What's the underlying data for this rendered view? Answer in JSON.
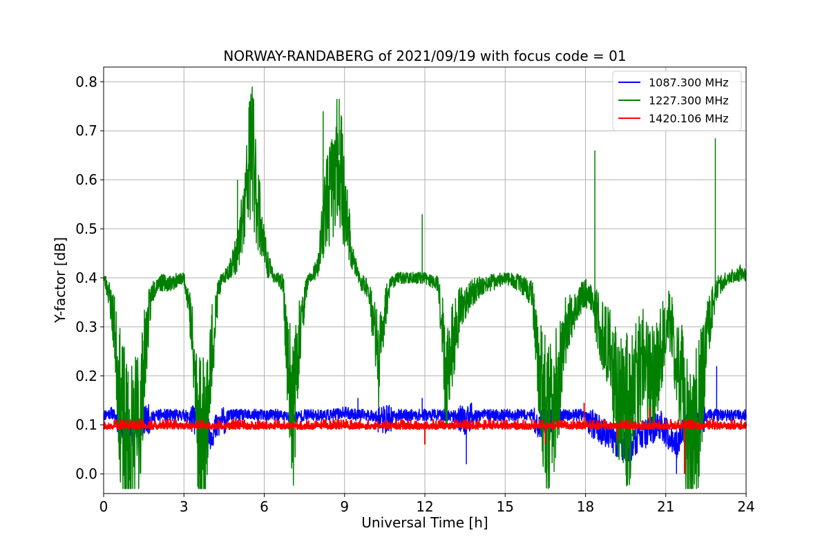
{
  "chart_data": {
    "type": "line",
    "title": "NORWAY-RANDABERG of 2021/09/19 with focus code = 01",
    "xlabel": "Universal Time [h]",
    "ylabel": "Y-factor [dB]",
    "xlim": [
      0,
      24
    ],
    "ylim": [
      -0.04,
      0.83
    ],
    "xticks": [
      0,
      3,
      6,
      9,
      12,
      15,
      18,
      21,
      24
    ],
    "xtick_labels": [
      "0",
      "3",
      "6",
      "9",
      "12",
      "15",
      "18",
      "21",
      "24"
    ],
    "yticks": [
      0.0,
      0.1,
      0.2,
      0.3,
      0.4,
      0.5,
      0.6,
      0.7,
      0.8
    ],
    "ytick_labels": [
      "0.0",
      "0.1",
      "0.2",
      "0.3",
      "0.4",
      "0.5",
      "0.6",
      "0.7",
      "0.8"
    ],
    "grid": true,
    "legend_position": "top-right",
    "series": [
      {
        "name": "1087.300 MHz",
        "color": "#0000ff",
        "x": [
          0,
          0.3,
          0.6,
          0.8,
          1.0,
          1.3,
          1.6,
          2.0,
          2.5,
          3.0,
          3.4,
          3.7,
          4.0,
          4.3,
          4.7,
          5.0,
          5.5,
          6.0,
          6.5,
          7.0,
          7.5,
          8.0,
          8.5,
          9.0,
          9.5,
          10.0,
          10.5,
          11.0,
          11.5,
          12.0,
          12.5,
          13.0,
          13.5,
          14.0,
          14.5,
          15.0,
          15.5,
          16.0,
          16.3,
          16.6,
          17.0,
          17.5,
          18.0,
          18.3,
          18.6,
          19.0,
          19.3,
          19.6,
          19.9,
          20.2,
          20.5,
          20.8,
          21.1,
          21.4,
          21.7,
          22.0,
          22.3,
          22.6,
          22.9,
          23.2,
          23.5,
          24.0
        ],
        "y": [
          0.12,
          0.125,
          0.11,
          0.09,
          0.08,
          0.1,
          0.11,
          0.12,
          0.12,
          0.12,
          0.11,
          0.09,
          0.08,
          0.1,
          0.12,
          0.12,
          0.12,
          0.12,
          0.12,
          0.115,
          0.12,
          0.12,
          0.12,
          0.125,
          0.12,
          0.12,
          0.11,
          0.12,
          0.12,
          0.12,
          0.12,
          0.12,
          0.11,
          0.12,
          0.12,
          0.12,
          0.12,
          0.12,
          0.1,
          0.11,
          0.12,
          0.12,
          0.12,
          0.1,
          0.09,
          0.07,
          0.06,
          0.05,
          0.07,
          0.08,
          0.09,
          0.1,
          0.08,
          0.06,
          0.09,
          0.1,
          0.11,
          0.12,
          0.12,
          0.12,
          0.12,
          0.12
        ],
        "spikes": [
          [
            3.7,
            0.05
          ],
          [
            13.55,
            0.02
          ],
          [
            16.6,
            0.06
          ],
          [
            21.4,
            0.0
          ],
          [
            22.9,
            0.22
          ],
          [
            9.5,
            0.155
          ],
          [
            11.9,
            0.155
          ]
        ]
      },
      {
        "name": "1227.300 MHz",
        "color": "#008000",
        "x": [
          0,
          0.2,
          0.4,
          0.6,
          0.8,
          1.0,
          1.2,
          1.4,
          1.6,
          1.8,
          2.0,
          2.5,
          3.0,
          3.2,
          3.4,
          3.6,
          3.8,
          4.0,
          4.3,
          4.6,
          5.0,
          5.3,
          5.5,
          5.7,
          5.9,
          6.1,
          6.4,
          6.7,
          6.9,
          7.1,
          7.3,
          7.6,
          8.0,
          8.3,
          8.6,
          8.8,
          9.0,
          9.3,
          9.6,
          9.9,
          10.1,
          10.3,
          10.5,
          10.7,
          11.0,
          11.5,
          12.0,
          12.5,
          12.8,
          13.0,
          13.3,
          13.6,
          14.0,
          14.5,
          15.0,
          15.5,
          16.0,
          16.3,
          16.6,
          16.9,
          17.2,
          17.5,
          17.8,
          18.0,
          18.3,
          18.5,
          18.7,
          19.0,
          19.3,
          19.6,
          19.9,
          20.2,
          20.5,
          20.8,
          21.1,
          21.4,
          21.7,
          22.0,
          22.3,
          22.6,
          22.9,
          23.3,
          23.7,
          24.0
        ],
        "y": [
          0.4,
          0.37,
          0.3,
          0.15,
          0.05,
          0.03,
          0.06,
          0.15,
          0.28,
          0.37,
          0.39,
          0.39,
          0.4,
          0.35,
          0.2,
          0.07,
          0.08,
          0.23,
          0.38,
          0.41,
          0.45,
          0.55,
          0.68,
          0.58,
          0.5,
          0.43,
          0.4,
          0.39,
          0.2,
          0.13,
          0.28,
          0.39,
          0.42,
          0.55,
          0.6,
          0.65,
          0.55,
          0.44,
          0.39,
          0.38,
          0.3,
          0.22,
          0.33,
          0.39,
          0.4,
          0.4,
          0.4,
          0.39,
          0.2,
          0.25,
          0.33,
          0.36,
          0.38,
          0.39,
          0.4,
          0.39,
          0.37,
          0.2,
          0.07,
          0.15,
          0.28,
          0.33,
          0.35,
          0.37,
          0.35,
          0.3,
          0.28,
          0.22,
          0.15,
          0.12,
          0.18,
          0.25,
          0.16,
          0.25,
          0.32,
          0.24,
          0.12,
          0.08,
          0.15,
          0.3,
          0.38,
          0.4,
          0.41,
          0.41
        ],
        "spikes": [
          [
            5.55,
            0.79
          ],
          [
            5.0,
            0.6
          ],
          [
            8.8,
            0.765
          ],
          [
            8.2,
            0.74
          ],
          [
            11.9,
            0.53
          ],
          [
            18.35,
            0.66
          ],
          [
            22.85,
            0.685
          ],
          [
            3.85,
            0.02
          ],
          [
            0.8,
            0.01
          ],
          [
            16.6,
            0.01
          ],
          [
            21.8,
            0.03
          ]
        ]
      },
      {
        "name": "1420.106 MHz",
        "color": "#ff0000",
        "x": [
          0,
          0.5,
          1.0,
          1.5,
          2.0,
          2.5,
          3.0,
          3.5,
          4.0,
          4.5,
          5.0,
          5.5,
          6.0,
          6.5,
          7.0,
          7.5,
          8.0,
          8.5,
          9.0,
          9.5,
          10.0,
          10.5,
          11.0,
          11.5,
          12.0,
          12.5,
          13.0,
          13.5,
          14.0,
          14.5,
          15.0,
          15.5,
          16.0,
          16.5,
          17.0,
          17.5,
          18.0,
          18.5,
          19.0,
          19.5,
          20.0,
          20.5,
          21.0,
          21.5,
          22.0,
          22.5,
          23.0,
          23.5,
          24.0
        ],
        "y": [
          0.097,
          0.097,
          0.097,
          0.097,
          0.097,
          0.097,
          0.097,
          0.097,
          0.097,
          0.097,
          0.097,
          0.097,
          0.097,
          0.097,
          0.097,
          0.097,
          0.097,
          0.097,
          0.097,
          0.097,
          0.097,
          0.097,
          0.097,
          0.097,
          0.097,
          0.097,
          0.097,
          0.097,
          0.097,
          0.097,
          0.097,
          0.097,
          0.097,
          0.097,
          0.097,
          0.097,
          0.097,
          0.097,
          0.097,
          0.097,
          0.097,
          0.097,
          0.097,
          0.097,
          0.097,
          0.097,
          0.097,
          0.097,
          0.097
        ],
        "spikes": [
          [
            17.95,
            0.145
          ],
          [
            20.4,
            0.135
          ],
          [
            21.7,
            0.0
          ],
          [
            12.0,
            0.06
          ],
          [
            16.5,
            0.06
          ],
          [
            19.2,
            0.07
          ]
        ]
      }
    ]
  }
}
